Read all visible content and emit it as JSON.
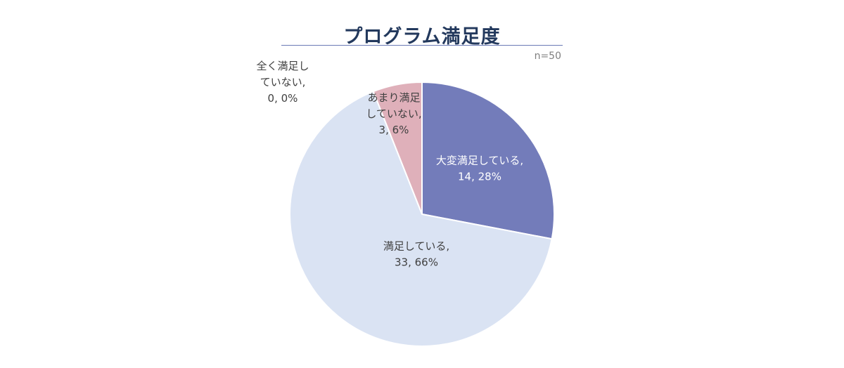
{
  "chart_data": {
    "type": "pie",
    "title": "プログラム満足度",
    "note": "n=50",
    "start_angle_deg": 0,
    "direction": "clockwise",
    "slices": [
      {
        "label": "大変満足している",
        "count": 14,
        "percent": "28%",
        "color": "#737cba",
        "label_color": "#ffffff",
        "label_lines": [
          "大変満足している,",
          "14, 28%"
        ]
      },
      {
        "label": "満足している",
        "count": 33,
        "percent": "66%",
        "color": "#dae3f3",
        "label_color": "#404040",
        "label_lines": [
          "満足している,",
          "33, 66%"
        ]
      },
      {
        "label": "全く満足していない",
        "count": 0,
        "percent": "0%",
        "color": "#c9c9c9",
        "label_color": "#404040",
        "label_lines": [
          "全く満足し",
          "ていない,",
          "0, 0%"
        ]
      },
      {
        "label": "あまり満足していない",
        "count": 3,
        "percent": "6%",
        "color": "#dfb0ba",
        "label_color": "#404040",
        "label_lines": [
          "あまり満足",
          "していない,",
          "3, 6%"
        ]
      }
    ]
  }
}
